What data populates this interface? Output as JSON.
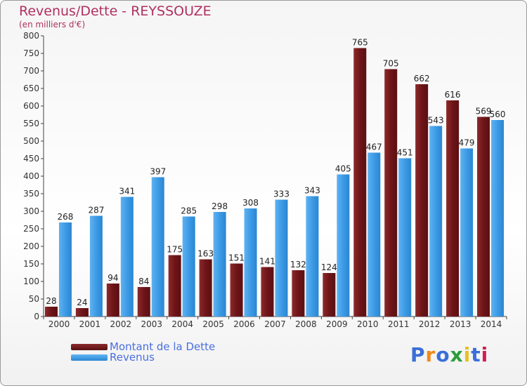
{
  "title": "Revenus/Dette - REYSSOUZE",
  "subtitle": "(en milliers d'€)",
  "legend": {
    "debt_label": "Montant de la Dette",
    "revenue_label": "Revenus"
  },
  "logo": {
    "text": "Proxiti",
    "letters": [
      "P",
      "r",
      "o",
      "x",
      "i",
      "t",
      "i"
    ]
  },
  "colors": {
    "debt": "#6e1518",
    "revenue": "#3d9be6",
    "title": "#b03060",
    "legend_text": "#4a6ee0"
  },
  "chart_data": {
    "type": "bar",
    "title": "Revenus/Dette - REYSSOUZE",
    "ylabel": "(en milliers d'€)",
    "ylim": [
      0,
      800
    ],
    "yticks": [
      0,
      50,
      100,
      150,
      200,
      250,
      300,
      350,
      400,
      450,
      500,
      550,
      600,
      650,
      700,
      750,
      800
    ],
    "grid": false,
    "legend_position": "bottom-left",
    "categories": [
      "2000",
      "2001",
      "2002",
      "2003",
      "2004",
      "2005",
      "2006",
      "2007",
      "2008",
      "2009",
      "2010",
      "2011",
      "2012",
      "2013",
      "2014"
    ],
    "series": [
      {
        "name": "Montant de la Dette",
        "values": [
          28,
          24,
          94,
          84,
          175,
          163,
          151,
          141,
          132,
          124,
          765,
          705,
          662,
          616,
          569
        ]
      },
      {
        "name": "Revenus",
        "values": [
          268,
          287,
          341,
          397,
          285,
          298,
          308,
          333,
          343,
          405,
          467,
          451,
          543,
          479,
          560
        ]
      }
    ]
  }
}
